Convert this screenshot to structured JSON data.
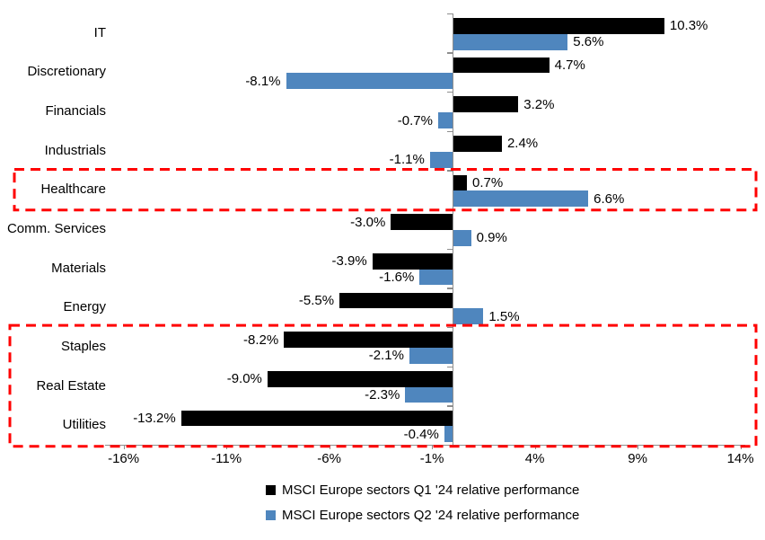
{
  "chart_data": {
    "type": "bar",
    "orientation": "horizontal",
    "title": "",
    "categories": [
      "IT",
      "Discretionary",
      "Financials",
      "Industrials",
      "Healthcare",
      "Comm. Services",
      "Materials",
      "Energy",
      "Staples",
      "Real Estate",
      "Utilities"
    ],
    "series": [
      {
        "name": "MSCI Europe sectors Q1 '24 relative performance",
        "color": "#000000",
        "values": [
          10.3,
          4.7,
          3.2,
          2.4,
          0.7,
          -3.0,
          -3.9,
          -5.5,
          -8.2,
          -9.0,
          -13.2
        ],
        "labels": [
          "10.3%",
          "4.7%",
          "3.2%",
          "2.4%",
          "0.7%",
          "-3.0%",
          "-3.9%",
          "-5.5%",
          "-8.2%",
          "-9.0%",
          "-13.2%"
        ]
      },
      {
        "name": "MSCI Europe sectors Q2 '24 relative performance",
        "color": "#4F86BE",
        "values": [
          5.6,
          -8.1,
          -0.7,
          -1.1,
          6.6,
          0.9,
          -1.6,
          1.5,
          -2.1,
          -2.3,
          -0.4
        ],
        "labels": [
          "5.6%",
          "-8.1%",
          "-0.7%",
          "-1.1%",
          "6.6%",
          "0.9%",
          "-1.6%",
          "1.5%",
          "-2.1%",
          "-2.3%",
          "-0.4%"
        ]
      }
    ],
    "x_axis": {
      "tick_labels": [
        "-16%",
        "-11%",
        "-6%",
        "-1%",
        "4%",
        "9%",
        "14%"
      ],
      "tick_values": [
        -16,
        -11,
        -6,
        -1,
        4,
        9,
        14
      ],
      "min": -16.9,
      "max": 14.25
    },
    "grid": false,
    "legend_position": "bottom",
    "annotations": {
      "highlight_boxes": [
        {
          "categories": [
            "Healthcare"
          ],
          "color": "#FF0000",
          "style": "dashed"
        },
        {
          "categories": [
            "Staples",
            "Real Estate",
            "Utilities"
          ],
          "color": "#FF0000",
          "style": "dashed"
        }
      ]
    }
  },
  "colors": {
    "q1_bar": "#000000",
    "q2_bar": "#4F86BE",
    "axis": "#8E8E8E",
    "highlight": "#FF0000",
    "background": "#FFFFFF",
    "text": "#000000"
  }
}
